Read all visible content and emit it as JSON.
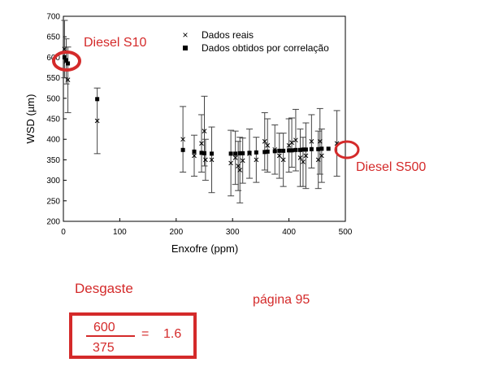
{
  "chart_data": {
    "type": "scatter",
    "xlabel": "Enxofre (ppm)",
    "ylabel": "WSD (µm)",
    "xlim": [
      0,
      500
    ],
    "ylim": [
      200,
      700
    ],
    "xticks": [
      0,
      100,
      200,
      300,
      400,
      500
    ],
    "yticks": [
      200,
      250,
      300,
      350,
      400,
      450,
      500,
      550,
      600,
      650,
      700
    ],
    "grid": false,
    "legend_position": "top-right",
    "legend": [
      {
        "label": "Dados reais",
        "marker": "x"
      },
      {
        "label": "Dados obtidos por correlação",
        "marker": "square"
      }
    ],
    "series": [
      {
        "name": "Dados reais",
        "marker": "x",
        "points": [
          {
            "x": 2,
            "y": 620,
            "err": 70
          },
          {
            "x": 5,
            "y": 590,
            "err": 55
          },
          {
            "x": 8,
            "y": 545,
            "err": 80
          },
          {
            "x": 60,
            "y": 445,
            "err": 80
          },
          {
            "x": 212,
            "y": 400,
            "err": 80
          },
          {
            "x": 232,
            "y": 360,
            "err": 50
          },
          {
            "x": 245,
            "y": 390,
            "err": 70
          },
          {
            "x": 250,
            "y": 420,
            "err": 85
          },
          {
            "x": 252,
            "y": 350,
            "err": 50
          },
          {
            "x": 263,
            "y": 350,
            "err": 80
          },
          {
            "x": 297,
            "y": 342,
            "err": 80
          },
          {
            "x": 305,
            "y": 355,
            "err": 65
          },
          {
            "x": 310,
            "y": 335,
            "err": 60
          },
          {
            "x": 313,
            "y": 325,
            "err": 80
          },
          {
            "x": 318,
            "y": 348,
            "err": 55
          },
          {
            "x": 330,
            "y": 365,
            "err": 60
          },
          {
            "x": 342,
            "y": 350,
            "err": 55
          },
          {
            "x": 357,
            "y": 395,
            "err": 70
          },
          {
            "x": 362,
            "y": 385,
            "err": 65
          },
          {
            "x": 375,
            "y": 375,
            "err": 60
          },
          {
            "x": 383,
            "y": 360,
            "err": 55
          },
          {
            "x": 390,
            "y": 350,
            "err": 65
          },
          {
            "x": 400,
            "y": 385,
            "err": 65
          },
          {
            "x": 405,
            "y": 392,
            "err": 60
          },
          {
            "x": 412,
            "y": 398,
            "err": 75
          },
          {
            "x": 420,
            "y": 355,
            "err": 70
          },
          {
            "x": 425,
            "y": 345,
            "err": 60
          },
          {
            "x": 430,
            "y": 360,
            "err": 80
          },
          {
            "x": 440,
            "y": 395,
            "err": 65
          },
          {
            "x": 452,
            "y": 350,
            "err": 70
          },
          {
            "x": 455,
            "y": 395,
            "err": 80
          },
          {
            "x": 458,
            "y": 360,
            "err": 65
          },
          {
            "x": 485,
            "y": 390,
            "err": 80
          }
        ]
      },
      {
        "name": "Dados obtidos por correlação",
        "marker": "square",
        "points": [
          {
            "x": 2,
            "y": 600
          },
          {
            "x": 5,
            "y": 593
          },
          {
            "x": 8,
            "y": 585
          },
          {
            "x": 60,
            "y": 498
          },
          {
            "x": 212,
            "y": 374
          },
          {
            "x": 232,
            "y": 370
          },
          {
            "x": 245,
            "y": 367
          },
          {
            "x": 250,
            "y": 366
          },
          {
            "x": 263,
            "y": 365
          },
          {
            "x": 297,
            "y": 365
          },
          {
            "x": 305,
            "y": 365
          },
          {
            "x": 313,
            "y": 366
          },
          {
            "x": 318,
            "y": 366
          },
          {
            "x": 330,
            "y": 367
          },
          {
            "x": 342,
            "y": 368
          },
          {
            "x": 357,
            "y": 369
          },
          {
            "x": 362,
            "y": 370
          },
          {
            "x": 375,
            "y": 371
          },
          {
            "x": 383,
            "y": 372
          },
          {
            "x": 390,
            "y": 372
          },
          {
            "x": 400,
            "y": 373
          },
          {
            "x": 405,
            "y": 373
          },
          {
            "x": 412,
            "y": 374
          },
          {
            "x": 420,
            "y": 374
          },
          {
            "x": 425,
            "y": 375
          },
          {
            "x": 430,
            "y": 375
          },
          {
            "x": 440,
            "y": 376
          },
          {
            "x": 452,
            "y": 376
          },
          {
            "x": 458,
            "y": 377
          },
          {
            "x": 470,
            "y": 377
          }
        ]
      }
    ],
    "annotations": [
      {
        "text": "Diesel S10",
        "target_x": 5,
        "target_y": 590
      },
      {
        "text": "Diesel S500",
        "target_x": 500,
        "target_y": 375
      }
    ]
  },
  "notes": {
    "desgaste": "Desgaste",
    "pagina": "página 95",
    "formula": {
      "numerator": "600",
      "denominator": "375",
      "equals": "=",
      "result": "1.6"
    }
  },
  "colors": {
    "annotation_red": "#d42a2a",
    "axis": "#000000",
    "errorbar": "#444444"
  }
}
